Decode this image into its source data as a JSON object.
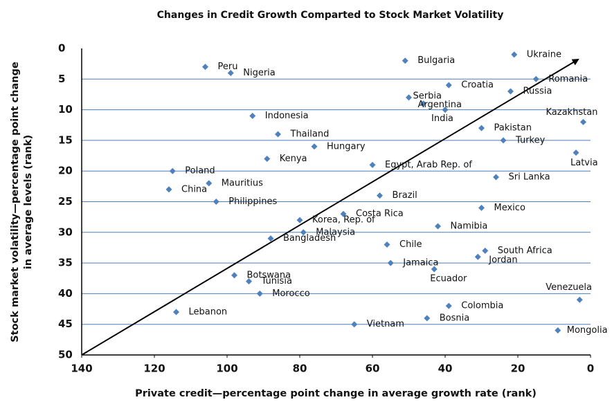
{
  "chart_data": {
    "type": "scatter",
    "title": "Changes in Credit Growth Comparted to Stock Market Volatility",
    "xlabel": "Private credit—percentage point change in average growth rate (rank)",
    "ylabel": [
      "Stock market volatility—percentage point change",
      "in average levels (rank)"
    ],
    "color": "#4f81bd",
    "grid_color": "#4a7ebb",
    "grid": true,
    "xlim": [
      140,
      0
    ],
    "ylim": [
      50,
      0
    ],
    "xticks": [
      140,
      120,
      100,
      80,
      60,
      40,
      20,
      0
    ],
    "yticks": [
      0,
      5,
      10,
      15,
      20,
      25,
      30,
      35,
      40,
      45,
      50
    ],
    "labels": [
      "Ukraine",
      "Bulgaria",
      "Peru",
      "Nigeria",
      "Romania",
      "Croatia",
      "Russia",
      "Serbia",
      "Argentina",
      "India",
      "Indonesia",
      "Kazakhstan",
      "Pakistan",
      "Thailand",
      "Turkey",
      "Hungary",
      "Latvia",
      "Kenya",
      "Egypt, Arab Rep. of",
      "Poland",
      "Sri Lanka",
      "Mauritius",
      "China",
      "Brazil",
      "Philippines",
      "Mexico",
      "Costa Rica",
      "Korea, Rep. of",
      "Namibia",
      "Malaysia",
      "Bangladesh",
      "Chile",
      "South Africa",
      "Jordan",
      "Jamaica",
      "Ecuador",
      "Botswana",
      "Tunisia",
      "Morocco",
      "Venezuela",
      "Colombia",
      "Lebanon",
      "Bosnia",
      "Vietnam",
      "Mongolia"
    ],
    "x": [
      21,
      51,
      106,
      99,
      15,
      39,
      22,
      50,
      46,
      40,
      93,
      2,
      30,
      86,
      24,
      76,
      4,
      89,
      60,
      115,
      26,
      105,
      116,
      58,
      103,
      30,
      68,
      80,
      42,
      79,
      88,
      56,
      29,
      31,
      55,
      43,
      98,
      94,
      91,
      3,
      39,
      114,
      45,
      65,
      9
    ],
    "values": [
      1,
      2,
      3,
      4,
      5,
      6,
      7,
      8,
      9,
      10,
      11,
      12,
      13,
      14,
      15,
      16,
      17,
      18,
      19,
      20,
      21,
      22,
      23,
      24,
      25,
      26,
      27,
      28,
      29,
      30,
      31,
      32,
      33,
      34,
      35,
      36,
      37,
      38,
      40,
      41,
      42,
      43,
      44,
      45,
      46
    ]
  }
}
